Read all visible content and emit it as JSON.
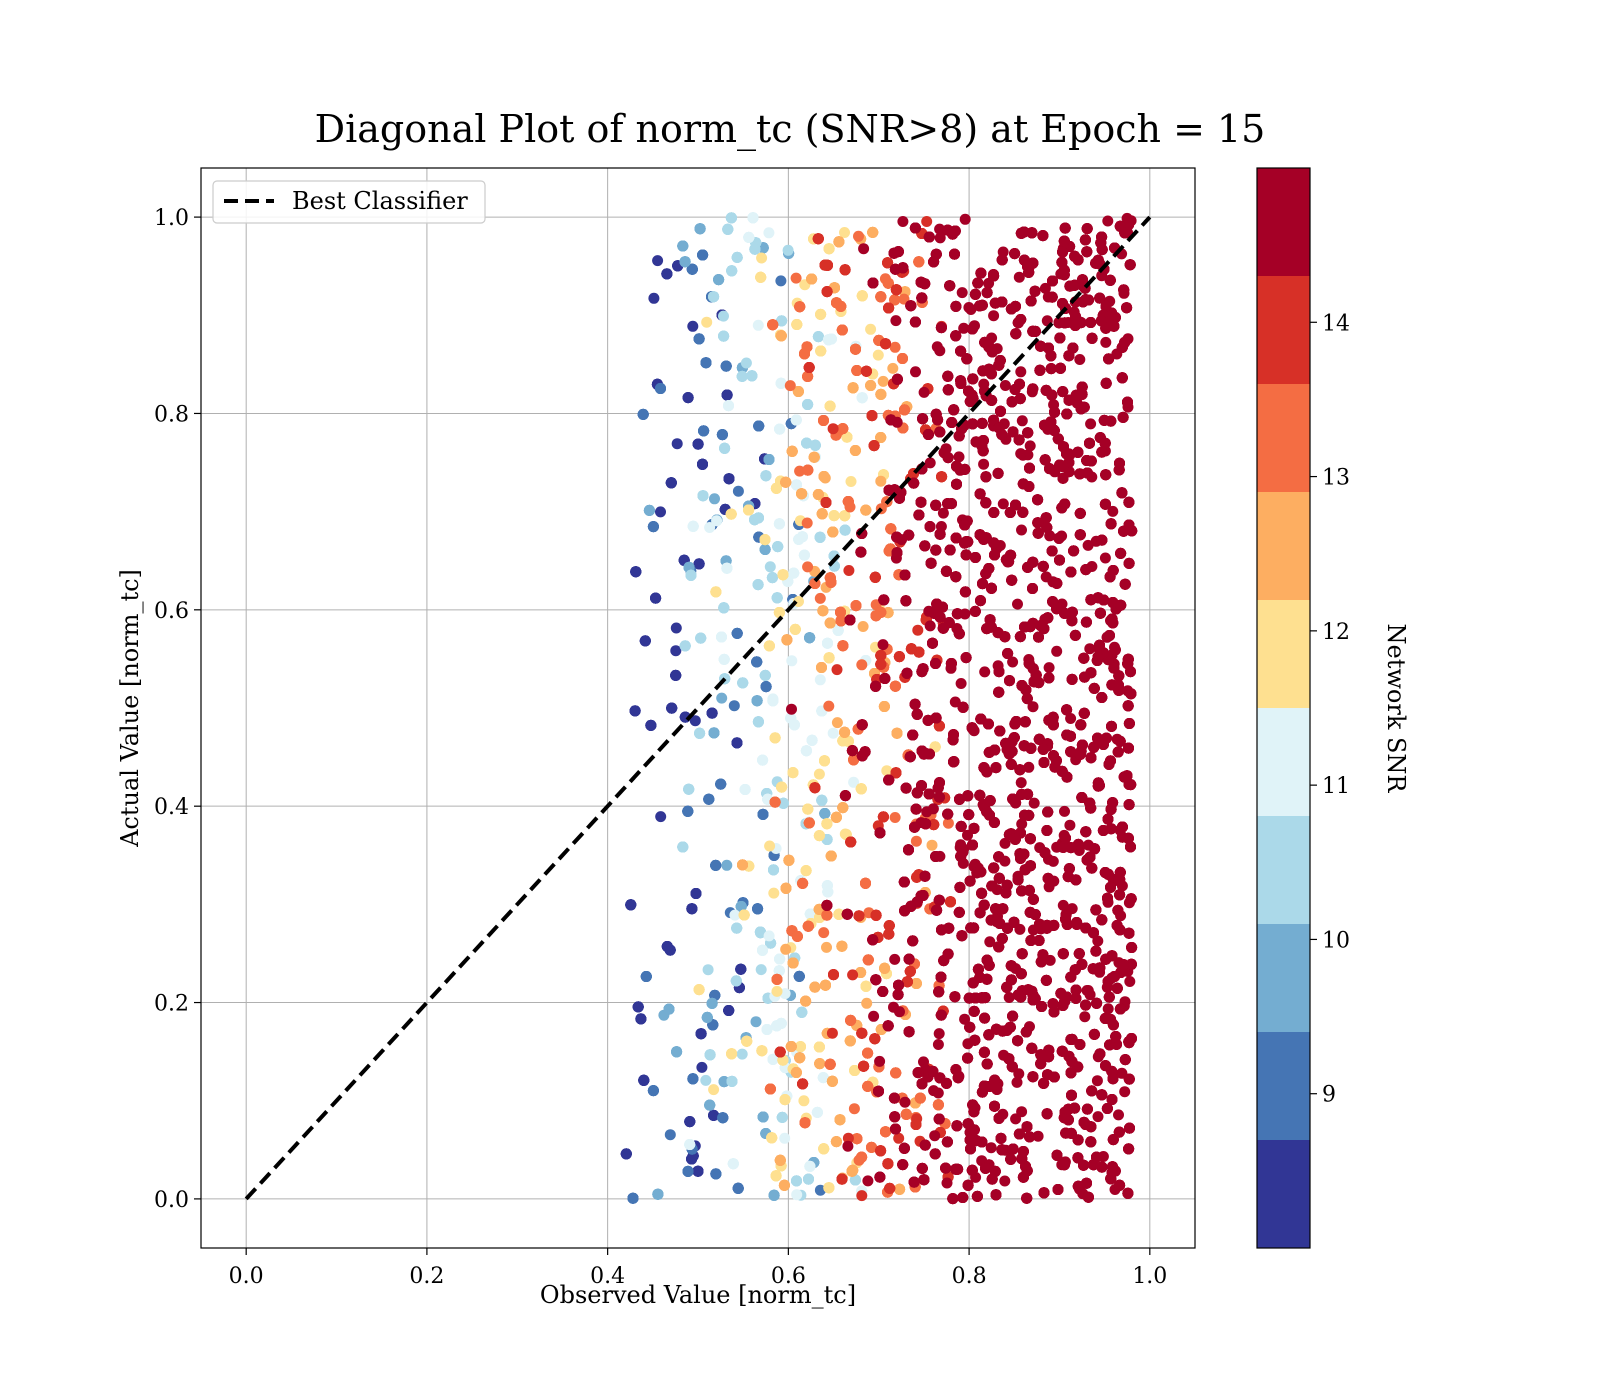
{
  "chart_data": {
    "type": "scatter",
    "title": "Diagonal Plot of norm_tc (SNR>8) at Epoch = 15",
    "xlabel": "Observed Value [norm_tc]",
    "ylabel": "Actual Value [norm_tc]",
    "xlim": [
      -0.05,
      1.05
    ],
    "ylim": [
      -0.05,
      1.05
    ],
    "xticks": [
      0.0,
      0.2,
      0.4,
      0.6,
      0.8,
      1.0
    ],
    "yticks": [
      0.0,
      0.2,
      0.4,
      0.6,
      0.8,
      1.0
    ],
    "xtick_labels": [
      "0.0",
      "0.2",
      "0.4",
      "0.6",
      "0.8",
      "1.0"
    ],
    "ytick_labels": [
      "0.0",
      "0.2",
      "0.4",
      "0.6",
      "0.8",
      "1.0"
    ],
    "grid": true,
    "legend": {
      "placement": "upper-left",
      "entries": [
        {
          "label": "Best Classifier",
          "style": "black-dashed-line"
        }
      ]
    },
    "reference_line": {
      "name": "Best Classifier",
      "x": [
        0.0,
        1.0
      ],
      "y": [
        0.0,
        1.0
      ],
      "color": "#000000",
      "style": "dashed"
    },
    "scatter_summary": {
      "x_range": [
        0.41,
        1.0
      ],
      "y_range": [
        0.0,
        1.0
      ],
      "color_variable": "Network SNR",
      "trend": "SNR increases with observed value: ~8-9 near x=0.45, ~11-12 near x=0.62, ~13-14 near x=0.72, >14 for x>0.78"
    },
    "colorbar": {
      "label": "Network SNR",
      "range": [
        8,
        15
      ],
      "ticks": [
        9,
        10,
        11,
        12,
        13,
        14
      ],
      "tick_labels": [
        "9",
        "10",
        "11",
        "12",
        "13",
        "14"
      ],
      "colors": [
        "#313695",
        "#4575b4",
        "#74add1",
        "#abd9e9",
        "#e0f3f8",
        "#fee090",
        "#fdae61",
        "#f46d43",
        "#d73027",
        "#a50026"
      ]
    }
  }
}
